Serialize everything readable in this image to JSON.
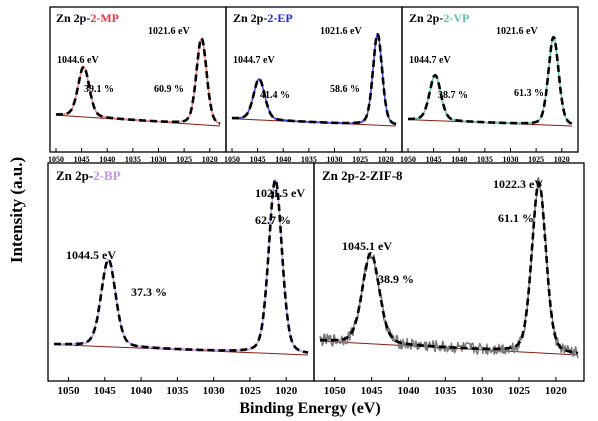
{
  "figure": {
    "ylabel": "Intensity (a.u.)",
    "xlabel": "Binding Energy (eV)"
  },
  "chart_data": [
    {
      "id": "p1",
      "type": "line",
      "title_prefix": "Zn 2p-",
      "title_sample": "2-MP",
      "sample_color": "#e8343f",
      "xlim": [
        1050,
        1018
      ],
      "xticks": [
        "1050",
        "1045",
        "1040",
        "1035",
        "1030",
        "1025",
        "1020"
      ],
      "baseline": [
        0.12,
        0.0
      ],
      "peaks": [
        {
          "center": 1044.6,
          "height": 0.55,
          "width": 1.1,
          "energy_label": "1044.6 eV",
          "area_label": "39.1 %"
        },
        {
          "center": 1021.6,
          "height": 0.95,
          "width": 1.0,
          "energy_label": "1021.6 eV",
          "area_label": "60.9 %"
        }
      ],
      "series": [
        {
          "name": "experimental",
          "color": "#f3877f"
        },
        {
          "name": "fit",
          "color": "#000000"
        }
      ]
    },
    {
      "id": "p2",
      "type": "line",
      "title_prefix": "Zn 2p-",
      "title_sample": "2-EP",
      "sample_color": "#1f2ad8",
      "xlim": [
        1050,
        1018
      ],
      "xticks": [
        "1050",
        "1045",
        "1040",
        "1035",
        "1030",
        "1025",
        "1020"
      ],
      "baseline": [
        0.08,
        0.0
      ],
      "peaks": [
        {
          "center": 1044.7,
          "height": 0.45,
          "width": 1.1,
          "energy_label": "1044.7 eV",
          "area_label": "41.4 %"
        },
        {
          "center": 1021.6,
          "height": 1.0,
          "width": 0.9,
          "energy_label": "1021.6 eV",
          "area_label": "58.6 %"
        }
      ],
      "series": [
        {
          "name": "experimental",
          "color": "#3a46e6"
        },
        {
          "name": "fit",
          "color": "#000000"
        }
      ]
    },
    {
      "id": "p3",
      "type": "line",
      "title_prefix": "Zn 2p-",
      "title_sample": "2-VP",
      "sample_color": "#5cc59d",
      "xlim": [
        1050,
        1018
      ],
      "xticks": [
        "1050",
        "1045",
        "1040",
        "1035",
        "1030",
        "1025",
        "1020"
      ],
      "baseline": [
        0.07,
        0.0
      ],
      "peaks": [
        {
          "center": 1044.7,
          "height": 0.5,
          "width": 1.1,
          "energy_label": "1044.7 eV",
          "area_label": "38.7 %"
        },
        {
          "center": 1021.6,
          "height": 0.97,
          "width": 1.0,
          "energy_label": "1021.6 eV",
          "area_label": "61.3 %"
        }
      ],
      "series": [
        {
          "name": "experimental",
          "color": "#63c9a2"
        },
        {
          "name": "fit",
          "color": "#000000"
        }
      ]
    },
    {
      "id": "p4",
      "type": "line",
      "title_prefix": "Zn 2p-",
      "title_sample": "2-BP",
      "sample_color": "#c496ee",
      "xlim": [
        1052,
        1017
      ],
      "xticks": [
        "1050",
        "1045",
        "1040",
        "1035",
        "1030",
        "1025",
        "1020"
      ],
      "baseline": [
        0.06,
        0.0
      ],
      "peaks": [
        {
          "center": 1044.5,
          "height": 0.5,
          "width": 1.0,
          "energy_label": "1044.5 eV",
          "area_label": "37.3 %"
        },
        {
          "center": 1021.5,
          "height": 1.0,
          "width": 0.9,
          "energy_label": "1021.5 eV",
          "area_label": "62.7 %"
        }
      ],
      "series": [
        {
          "name": "experimental",
          "color": "#c99cf0"
        },
        {
          "name": "fit",
          "color": "#000000"
        }
      ]
    },
    {
      "id": "p5",
      "type": "line",
      "title_prefix": "Zn 2p-",
      "title_sample": "2-ZIF-8",
      "sample_color": "#000000",
      "xlim": [
        1052,
        1017
      ],
      "xticks": [
        "1050",
        "1045",
        "1040",
        "1035",
        "1030",
        "1025",
        "1020"
      ],
      "baseline": [
        0.08,
        0.0
      ],
      "noise": 0.035,
      "peaks": [
        {
          "center": 1045.1,
          "height": 0.52,
          "width": 1.15,
          "energy_label": "1045.1 eV",
          "area_label": "38.9 %"
        },
        {
          "center": 1022.3,
          "height": 0.98,
          "width": 0.95,
          "energy_label": "1022.3 eV",
          "area_label": "61.1 %"
        }
      ],
      "series": [
        {
          "name": "experimental",
          "color": "#7a7a7a"
        },
        {
          "name": "fit",
          "color": "#000000"
        }
      ]
    }
  ]
}
